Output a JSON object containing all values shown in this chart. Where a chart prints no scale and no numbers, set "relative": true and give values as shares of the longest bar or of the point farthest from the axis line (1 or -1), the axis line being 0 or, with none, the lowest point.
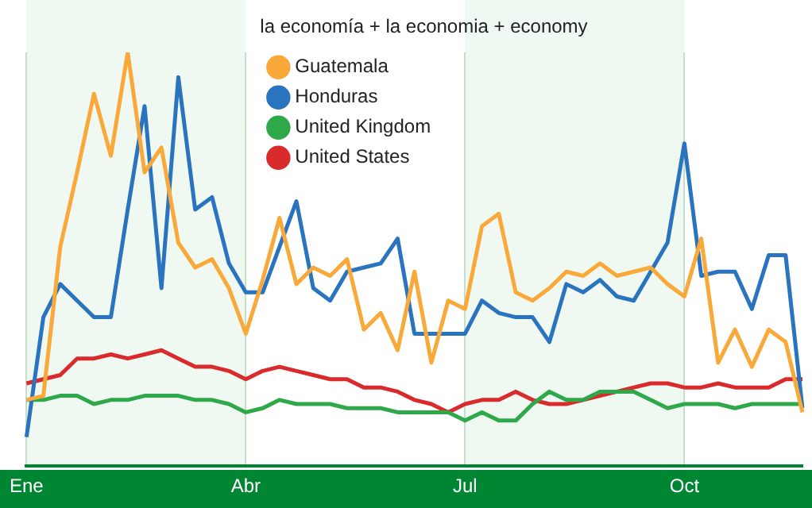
{
  "chart_data": {
    "type": "line",
    "relative": true,
    "legend_title": "la economía + la economia + economy",
    "legend": "top",
    "grid": "x",
    "categories": [
      "Ene",
      null,
      null,
      null,
      null,
      null,
      null,
      null,
      null,
      null,
      null,
      null,
      null,
      "Abr",
      null,
      null,
      null,
      null,
      null,
      null,
      null,
      null,
      null,
      null,
      null,
      null,
      "Jul",
      null,
      null,
      null,
      null,
      null,
      null,
      null,
      null,
      null,
      null,
      null,
      null,
      "Oct",
      null,
      null,
      null,
      null,
      null,
      null,
      null
    ],
    "bands": [
      {
        "axis": "x",
        "from": "Ene",
        "to": "Abr",
        "color": "#f0f8f2"
      },
      {
        "axis": "x",
        "from": "Jul",
        "to": "Oct",
        "color": "#f0f8f2"
      }
    ],
    "series": [
      {
        "name": "Guatemala",
        "color": "#f9a93a",
        "values": [
          0.16,
          0.17,
          0.53,
          0.71,
          0.9,
          0.75,
          1,
          0.71,
          0.77,
          0.54,
          0.48,
          0.5,
          0.43,
          0.32,
          0.45,
          0.6,
          0.44,
          0.48,
          0.46,
          0.5,
          0.33,
          0.37,
          0.28,
          0.47,
          0.25,
          0.4,
          0.38,
          0.58,
          0.61,
          0.42,
          0.4,
          0.43,
          0.47,
          0.46,
          0.49,
          0.46,
          0.47,
          0.48,
          0.44,
          0.41,
          0.55,
          0.25,
          0.33,
          0.24,
          0.33,
          0.3,
          0.13
        ]
      },
      {
        "name": "Honduras",
        "color": "#2a73be",
        "values": [
          0.07,
          0.36,
          0.44,
          0.4,
          0.36,
          0.36,
          0.62,
          0.87,
          0.43,
          0.94,
          0.62,
          0.65,
          0.49,
          0.42,
          0.42,
          0.53,
          0.64,
          0.43,
          0.4,
          0.47,
          0.48,
          0.49,
          0.55,
          0.32,
          0.32,
          0.32,
          0.32,
          0.4,
          0.37,
          0.36,
          0.36,
          0.3,
          0.44,
          0.42,
          0.45,
          0.41,
          0.4,
          0.47,
          0.54,
          0.78,
          0.46,
          0.47,
          0.47,
          0.38,
          0.51,
          0.51,
          0.14
        ]
      },
      {
        "name": "United Kingdom",
        "color": "#2fa84a",
        "values": [
          0.16,
          0.16,
          0.17,
          0.17,
          0.15,
          0.16,
          0.16,
          0.17,
          0.17,
          0.17,
          0.16,
          0.16,
          0.15,
          0.13,
          0.14,
          0.16,
          0.15,
          0.15,
          0.15,
          0.14,
          0.14,
          0.14,
          0.13,
          0.13,
          0.13,
          0.13,
          0.11,
          0.13,
          0.11,
          0.11,
          0.15,
          0.18,
          0.16,
          0.16,
          0.18,
          0.18,
          0.18,
          0.16,
          0.14,
          0.15,
          0.15,
          0.15,
          0.14,
          0.15,
          0.15,
          0.15,
          0.15
        ]
      },
      {
        "name": "United States",
        "color": "#d92b2b",
        "values": [
          0.2,
          0.21,
          0.22,
          0.26,
          0.26,
          0.27,
          0.26,
          0.27,
          0.28,
          0.26,
          0.24,
          0.24,
          0.23,
          0.21,
          0.23,
          0.24,
          0.23,
          0.22,
          0.21,
          0.21,
          0.19,
          0.19,
          0.18,
          0.16,
          0.15,
          0.13,
          0.15,
          0.16,
          0.16,
          0.18,
          0.16,
          0.15,
          0.15,
          0.16,
          0.17,
          0.18,
          0.19,
          0.2,
          0.2,
          0.19,
          0.19,
          0.2,
          0.19,
          0.19,
          0.19,
          0.21,
          0.21
        ]
      }
    ]
  }
}
